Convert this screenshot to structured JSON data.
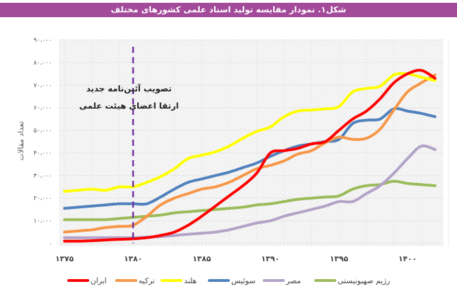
{
  "header": {
    "title": "شکل۱. نمودار مقایسه تولید اسناد علمی کشورهای مختلف"
  },
  "chart_data": {
    "type": "line",
    "title": "شکل۱. نمودار مقایسه تولید اسناد علمی کشورهای مختلف",
    "xlabel": "",
    "ylabel": "تعداد مقالات",
    "x": [
      1375,
      1376,
      1377,
      1378,
      1379,
      1380,
      1381,
      1382,
      1383,
      1384,
      1385,
      1386,
      1387,
      1388,
      1389,
      1390,
      1391,
      1392,
      1393,
      1394,
      1395,
      1396,
      1397,
      1398,
      1399,
      1400,
      1401,
      1402
    ],
    "xlim": [
      1375,
      1402
    ],
    "ylim": [
      0,
      90000
    ],
    "x_ticks": [
      1375,
      1380,
      1385,
      1390,
      1395,
      1400
    ],
    "x_tick_labels": [
      "۱۳۷۵",
      "۱۳۸۰",
      "۱۳۸۵",
      "۱۳۹۰",
      "۱۳۹۵",
      "۱۴۰۰"
    ],
    "y_ticks": [
      0,
      10000,
      20000,
      30000,
      40000,
      50000,
      60000,
      70000,
      80000,
      90000
    ],
    "y_tick_labels": [
      "۰",
      "۱۰،۰۰۰",
      "۲۰،۰۰۰",
      "۳۰،۰۰۰",
      "۴۰،۰۰۰",
      "۵۰،۰۰۰",
      "۶۰،۰۰۰",
      "۷۰،۰۰۰",
      "۸۰،۰۰۰",
      "۹۰،۰۰۰"
    ],
    "grid": true,
    "legend_position": "bottom",
    "series": [
      {
        "name": "ایران",
        "color": "#ff0000",
        "values": [
          1000,
          1000,
          1200,
          1500,
          1800,
          2000,
          2500,
          3500,
          5000,
          8000,
          12000,
          16500,
          21000,
          25500,
          31000,
          40000,
          41000,
          42000,
          44000,
          45000,
          50000,
          55000,
          58500,
          64000,
          71000,
          75000,
          76500,
          73000
        ]
      },
      {
        "name": "ترکیه",
        "color": "#f79646",
        "values": [
          5000,
          5500,
          6000,
          7000,
          7500,
          8000,
          12000,
          17000,
          20000,
          22000,
          24000,
          25000,
          27000,
          30000,
          33000,
          34500,
          36500,
          39500,
          41000,
          44500,
          47000,
          46000,
          46500,
          50500,
          59000,
          67000,
          71000,
          74500
        ]
      },
      {
        "name": "هلند",
        "color": "#ffff00",
        "values": [
          23000,
          23500,
          24000,
          23500,
          25000,
          25000,
          27000,
          29500,
          33000,
          37500,
          39000,
          40500,
          43000,
          46500,
          49500,
          51500,
          56000,
          58500,
          59000,
          59500,
          60500,
          67000,
          68500,
          69500,
          74500,
          75000,
          73500,
          72000
        ]
      },
      {
        "name": "سوئیس",
        "color": "#4f81bd",
        "values": [
          15500,
          16000,
          16500,
          17000,
          17500,
          17500,
          17500,
          20500,
          24000,
          27000,
          28500,
          30000,
          31500,
          33500,
          35500,
          38500,
          41000,
          43000,
          44000,
          45000,
          46000,
          53000,
          54500,
          55000,
          59500,
          58500,
          57500,
          56000
        ]
      },
      {
        "name": "مصر",
        "color": "#b3a2c7",
        "values": [
          2500,
          2500,
          2500,
          2500,
          2500,
          2500,
          2800,
          3000,
          3500,
          4000,
          4500,
          5000,
          6000,
          7500,
          9000,
          10000,
          12000,
          13500,
          15000,
          16500,
          18500,
          18500,
          22000,
          25500,
          31000,
          37500,
          43000,
          41500
        ]
      },
      {
        "name": "رژیم صهیونیستی",
        "color": "#9bbb59",
        "values": [
          10500,
          10500,
          10500,
          10500,
          11000,
          11500,
          12000,
          12500,
          13500,
          14000,
          14500,
          15000,
          15500,
          16000,
          17000,
          17500,
          18500,
          19500,
          20000,
          20500,
          21000,
          24000,
          25500,
          26000,
          27500,
          26500,
          26000,
          25500
        ]
      }
    ],
    "annotations": [
      {
        "x": 1380,
        "type": "vertical-dashed-line",
        "color": "#7030a0",
        "lines": [
          "تصویب آئین‌نامه جدید",
          "ارتقا اعضای هیئت علمی"
        ]
      }
    ]
  }
}
